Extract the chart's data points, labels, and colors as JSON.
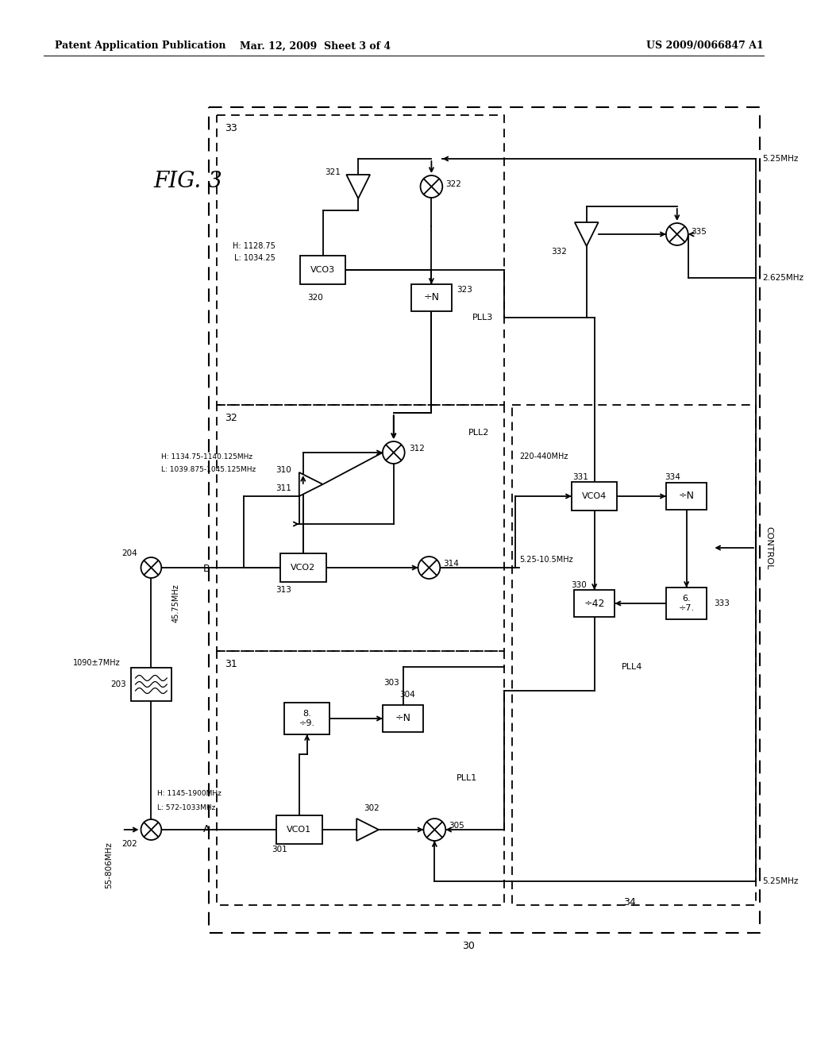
{
  "header_left": "Patent Application Publication",
  "header_mid": "Mar. 12, 2009  Sheet 3 of 4",
  "header_right": "US 2009/0066847 A1",
  "fig_label": "FIG. 3",
  "bg_color": "#ffffff",
  "lc": "#000000"
}
